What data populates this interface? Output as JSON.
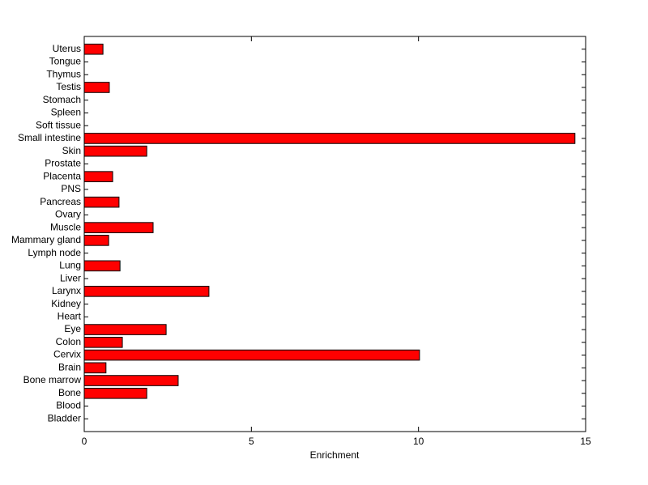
{
  "chart_data": {
    "type": "barh",
    "categories": [
      "Bladder",
      "Blood",
      "Bone",
      "Bone marrow",
      "Brain",
      "Cervix",
      "Colon",
      "Eye",
      "Heart",
      "Kidney",
      "Larynx",
      "Liver",
      "Lung",
      "Lymph node",
      "Mammary gland",
      "Muscle",
      "Ovary",
      "Pancreas",
      "PNS",
      "Placenta",
      "Prostate",
      "Skin",
      "Small intestine",
      "Soft tissue",
      "Spleen",
      "Stomach",
      "Testis",
      "Thymus",
      "Tongue",
      "Uterus"
    ],
    "values": [
      0,
      0,
      1.87,
      2.81,
      0.65,
      10.03,
      1.14,
      2.45,
      0,
      0,
      3.73,
      0,
      1.07,
      0,
      0.73,
      2.06,
      0,
      1.04,
      0,
      0.85,
      0,
      1.87,
      14.68,
      0,
      0,
      0,
      0.75,
      0,
      0,
      0.56
    ],
    "color": "#ff0000",
    "xlabel": "Enrichment",
    "xlim": [
      0,
      15
    ],
    "xticks": [
      0,
      5,
      10,
      15
    ]
  }
}
